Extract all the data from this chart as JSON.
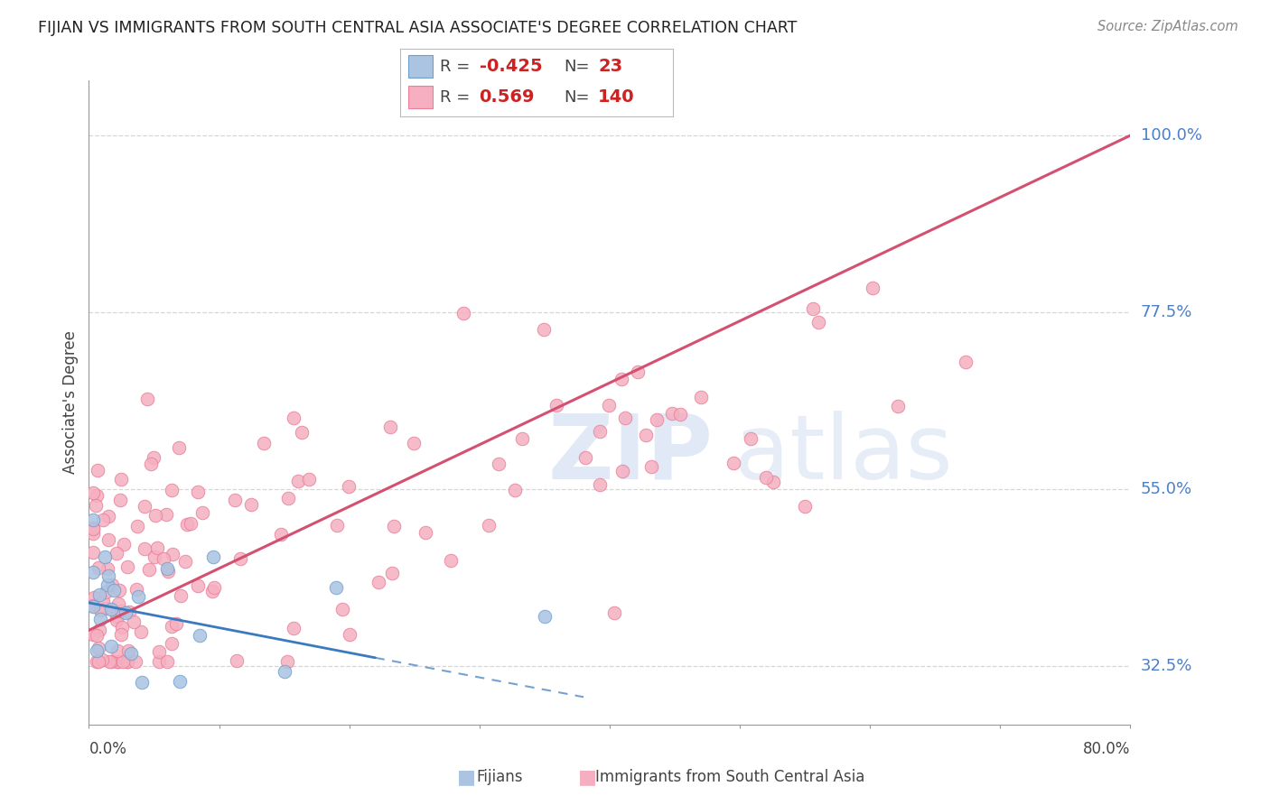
{
  "title": "FIJIAN VS IMMIGRANTS FROM SOUTH CENTRAL ASIA ASSOCIATE'S DEGREE CORRELATION CHART",
  "source": "Source: ZipAtlas.com",
  "ylabel_label": "Associate's Degree",
  "ytick_labels": [
    "32.5%",
    "55.0%",
    "77.5%",
    "100.0%"
  ],
  "ytick_values": [
    32.5,
    55.0,
    77.5,
    100.0
  ],
  "xlim": [
    0.0,
    80.0
  ],
  "ylim": [
    25.0,
    107.0
  ],
  "fijian_color": "#aac4e2",
  "fijian_edge": "#6fa0cc",
  "immigrant_color": "#f5afc0",
  "immigrant_edge": "#e8809a",
  "trend_blue": "#3a7abf",
  "trend_pink": "#d45070",
  "grid_color": "#cccccc",
  "grid_style": "--",
  "legend_R1": "-0.425",
  "legend_N1": "23",
  "legend_R2": "0.569",
  "legend_N2": "140",
  "watermark_zip": "ZIP",
  "watermark_atlas": "atlas",
  "title_color": "#222222",
  "source_color": "#888888",
  "label_color": "#4a7fcc",
  "axis_color": "#999999",
  "legend_text_color": "#444444",
  "legend_value_color": "#cc2222",
  "pink_trend_x0": 0.0,
  "pink_trend_y0": 37.0,
  "pink_trend_x1": 80.0,
  "pink_trend_y1": 100.0,
  "blue_trend_x0": 0.0,
  "blue_trend_y0": 40.5,
  "blue_trend_x1": 22.0,
  "blue_trend_y1": 33.5,
  "blue_dash_x0": 22.0,
  "blue_dash_y0": 33.5,
  "blue_dash_x1": 38.0,
  "blue_dash_y1": 28.5
}
